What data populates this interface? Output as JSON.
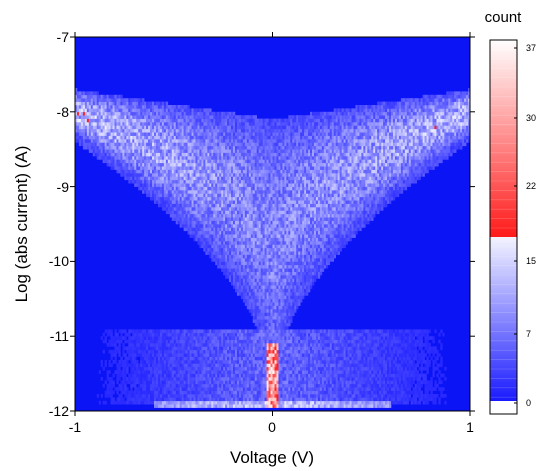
{
  "chart_data": {
    "type": "heatmap",
    "title": "",
    "xlabel": "Voltage (V)",
    "ylabel": "Log (abs current) (A)",
    "xlim": [
      -1,
      1
    ],
    "ylim": [
      -12,
      -7
    ],
    "x_ticks": [
      "-1",
      "0",
      "1"
    ],
    "y_ticks": [
      "-7",
      "-8",
      "-9",
      "-10",
      "-11",
      "-12"
    ],
    "colorbar": {
      "title": "count",
      "range": [
        0,
        37
      ],
      "ticks": [
        "0",
        "7",
        "15",
        "22",
        "30",
        "37"
      ],
      "colors": [
        "#ffffff",
        "#2020ff",
        "#ff2a2a",
        "#ffffff"
      ]
    },
    "grid": false,
    "description_of_density": {
      "background_count": 0,
      "peak_count": 37,
      "peak_location": {
        "voltage": 0,
        "log_current": -11.8
      }
    }
  }
}
